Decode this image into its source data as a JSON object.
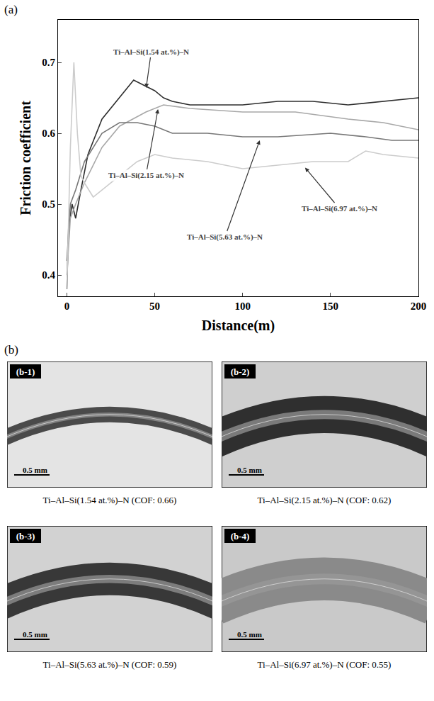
{
  "chart_data": {
    "type": "line",
    "x_label": "Distance(m)",
    "y_label": "Friction coefficient",
    "xlim": [
      -5,
      200
    ],
    "xticks": [
      0,
      50,
      100,
      150,
      200
    ],
    "ylim": [
      0.37,
      0.76
    ],
    "yticks": [
      0.4,
      0.5,
      0.6,
      0.7
    ],
    "grid": false,
    "series": [
      {
        "name": "Ti–Al–Si(1.54 at.%)–N",
        "color": "#2e2e2e",
        "line_style": "solid",
        "x": [
          0,
          1,
          3,
          5,
          8,
          12,
          20,
          30,
          38,
          42,
          50,
          55,
          60,
          70,
          80,
          100,
          120,
          140,
          160,
          180,
          200
        ],
        "values": [
          0.38,
          0.47,
          0.5,
          0.48,
          0.52,
          0.57,
          0.62,
          0.65,
          0.675,
          0.67,
          0.66,
          0.65,
          0.645,
          0.64,
          0.64,
          0.64,
          0.645,
          0.645,
          0.64,
          0.645,
          0.65
        ]
      },
      {
        "name": "Ti–Al–Si(2.15 at.%)–N",
        "color": "#a8a8a8",
        "line_style": "solid",
        "x": [
          0,
          2,
          5,
          10,
          20,
          30,
          45,
          55,
          70,
          100,
          130,
          160,
          180,
          200
        ],
        "values": [
          0.4,
          0.48,
          0.5,
          0.53,
          0.58,
          0.61,
          0.63,
          0.64,
          0.635,
          0.63,
          0.63,
          0.62,
          0.615,
          0.605
        ]
      },
      {
        "name": "Ti–Al–Si(5.63 at.%)–N",
        "color": "#777777",
        "line_style": "solid",
        "x": [
          0,
          2,
          5,
          10,
          20,
          30,
          40,
          50,
          60,
          80,
          100,
          120,
          150,
          170,
          185,
          200
        ],
        "values": [
          0.42,
          0.5,
          0.52,
          0.56,
          0.6,
          0.615,
          0.615,
          0.61,
          0.6,
          0.6,
          0.595,
          0.595,
          0.6,
          0.595,
          0.59,
          0.59
        ]
      },
      {
        "name": "Ti–Al–Si(6.97 at.%)–N",
        "color": "#cccccc",
        "line_style": "solid",
        "x": [
          0,
          2,
          4,
          6,
          8,
          10,
          15,
          25,
          40,
          50,
          60,
          80,
          100,
          120,
          140,
          160,
          170,
          180,
          200
        ],
        "values": [
          0.38,
          0.58,
          0.7,
          0.6,
          0.54,
          0.53,
          0.51,
          0.53,
          0.56,
          0.57,
          0.565,
          0.56,
          0.55,
          0.555,
          0.56,
          0.56,
          0.575,
          0.57,
          0.565
        ]
      }
    ],
    "annotations": [
      {
        "text": "Ti–Al–Si(1.54 at.%)–N",
        "x": 45,
        "y": 0.662,
        "text_x": 48,
        "text_y": 0.715
      },
      {
        "text": "Ti–Al–Si(2.15 at.%)–N",
        "x": 52,
        "y": 0.636,
        "text_x": 45,
        "text_y": 0.541
      },
      {
        "text": "Ti–Al–Si(5.63 at.%)–N",
        "x": 110,
        "y": 0.592,
        "text_x": 90,
        "text_y": 0.454
      },
      {
        "text": "Ti–Al–Si(6.97 at.%)–N",
        "x": 135,
        "y": 0.553,
        "text_x": 155,
        "text_y": 0.494
      }
    ]
  },
  "panel_a_label": "(a)",
  "panel_b": {
    "label": "(b)",
    "images": [
      {
        "label": "(b-1)",
        "scale_bar": "0.5 mm",
        "caption": "Ti–Al–Si(1.54 at.%)–N (COF: 0.66)"
      },
      {
        "label": "(b-2)",
        "scale_bar": "0.5 mm",
        "caption": "Ti–Al–Si(2.15 at.%)–N (COF: 0.62)"
      },
      {
        "label": "(b-3)",
        "scale_bar": "0.5 mm",
        "caption": "Ti–Al–Si(5.63 at.%)–N (COF: 0.59)"
      },
      {
        "label": "(b-4)",
        "scale_bar": "0.5 mm",
        "caption": "Ti–Al–Si(6.97 at.%)–N (COF: 0.55)"
      }
    ]
  }
}
